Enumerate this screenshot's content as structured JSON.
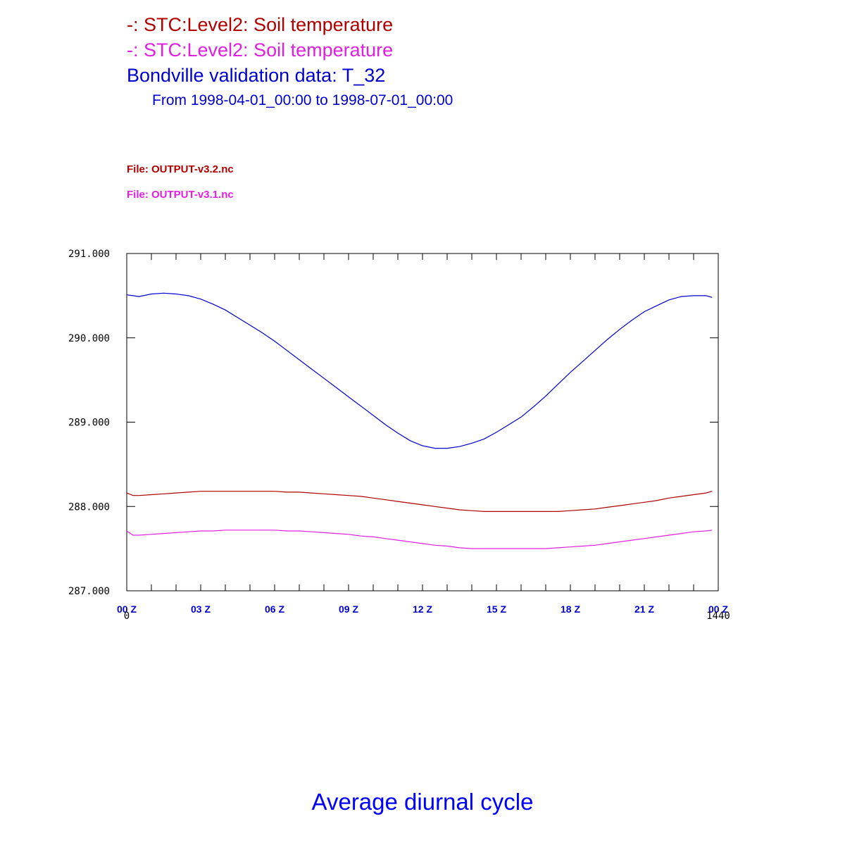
{
  "colors": {
    "series1": "#b00000",
    "series2": "#e020e0",
    "series3": "#0000d0",
    "axis_labels": "#0000d0",
    "caption": "#0000ff"
  },
  "header": {
    "line1": "-: STC:Level2: Soil temperature",
    "line2": "-: STC:Level2: Soil temperature",
    "line3": "Bondville validation data: T_32",
    "line4": "From 1998-04-01_00:00 to 1998-07-01_00:00"
  },
  "files": {
    "file1": "File: OUTPUT-v3.2.nc",
    "file2": "File: OUTPUT-v3.1.nc"
  },
  "caption": "Average diurnal cycle",
  "chart_data": {
    "type": "line",
    "title": "",
    "xlabel": "",
    "ylabel": "",
    "xlim": [
      0,
      1440
    ],
    "ylim": [
      287,
      291
    ],
    "grid": false,
    "x_tick_labels": [
      "00 Z",
      "03 Z",
      "06 Z",
      "09 Z",
      "12 Z",
      "15 Z",
      "18 Z",
      "21 Z",
      "00 Z"
    ],
    "x_tick_values": [
      0,
      180,
      360,
      540,
      720,
      900,
      1080,
      1260,
      1440
    ],
    "x_minor_step": 60,
    "x_range_labels": [
      "0",
      "1440"
    ],
    "y_tick_labels": [
      "291.000",
      "290.000",
      "289.000",
      "288.000",
      "287.000"
    ],
    "y_tick_values": [
      291,
      290,
      289,
      288,
      287
    ],
    "x": [
      0,
      15,
      30,
      60,
      90,
      120,
      150,
      180,
      210,
      240,
      270,
      300,
      330,
      360,
      390,
      420,
      450,
      480,
      510,
      540,
      570,
      600,
      630,
      660,
      690,
      720,
      750,
      780,
      810,
      840,
      870,
      900,
      930,
      960,
      990,
      1020,
      1050,
      1080,
      1110,
      1140,
      1170,
      1200,
      1230,
      1260,
      1290,
      1320,
      1350,
      1380,
      1410,
      1425
    ],
    "series": [
      {
        "values": [
          288.16,
          288.13,
          288.13,
          288.14,
          288.15,
          288.16,
          288.17,
          288.18,
          288.18,
          288.18,
          288.18,
          288.18,
          288.18,
          288.18,
          288.17,
          288.17,
          288.16,
          288.15,
          288.14,
          288.13,
          288.12,
          288.1,
          288.08,
          288.06,
          288.04,
          288.02,
          288.0,
          287.98,
          287.96,
          287.95,
          287.94,
          287.94,
          287.94,
          287.94,
          287.94,
          287.94,
          287.94,
          287.95,
          287.96,
          287.97,
          287.99,
          288.01,
          288.03,
          288.05,
          288.07,
          288.1,
          288.12,
          288.14,
          288.16,
          288.18
        ]
      },
      {
        "values": [
          287.71,
          287.66,
          287.66,
          287.67,
          287.68,
          287.69,
          287.7,
          287.71,
          287.71,
          287.72,
          287.72,
          287.72,
          287.72,
          287.72,
          287.71,
          287.71,
          287.7,
          287.69,
          287.68,
          287.67,
          287.65,
          287.64,
          287.62,
          287.6,
          287.58,
          287.56,
          287.54,
          287.53,
          287.51,
          287.5,
          287.5,
          287.5,
          287.5,
          287.5,
          287.5,
          287.5,
          287.51,
          287.52,
          287.53,
          287.54,
          287.56,
          287.58,
          287.6,
          287.62,
          287.64,
          287.66,
          287.68,
          287.7,
          287.71,
          287.72
        ]
      },
      {
        "values": [
          290.51,
          290.5,
          290.49,
          290.52,
          290.53,
          290.52,
          290.5,
          290.46,
          290.4,
          290.33,
          290.24,
          290.15,
          290.06,
          289.96,
          289.85,
          289.74,
          289.63,
          289.52,
          289.41,
          289.3,
          289.19,
          289.08,
          288.97,
          288.87,
          288.78,
          288.72,
          288.69,
          288.69,
          288.71,
          288.75,
          288.8,
          288.88,
          288.97,
          289.06,
          289.18,
          289.31,
          289.45,
          289.59,
          289.72,
          289.85,
          289.98,
          290.1,
          290.21,
          290.31,
          290.38,
          290.45,
          290.49,
          290.5,
          290.5,
          290.48
        ]
      }
    ]
  }
}
